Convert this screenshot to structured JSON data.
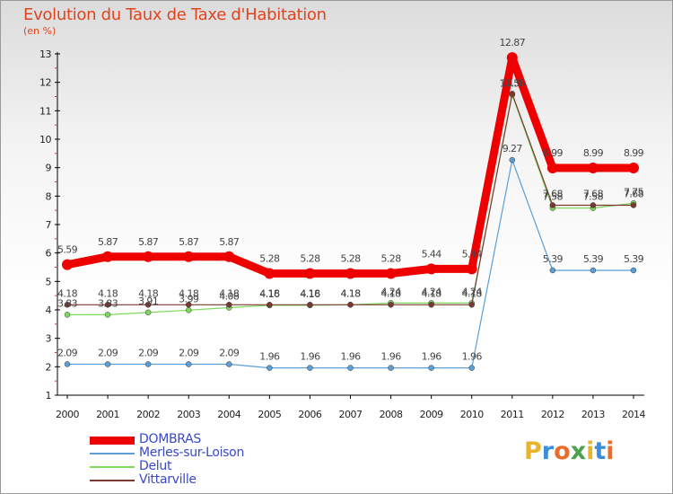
{
  "title": "Evolution du Taux de Taxe d'Habitation",
  "unit": "(en %)",
  "logo": {
    "text": "Proxiti",
    "colors": [
      "#e8b52a",
      "#3c8ed6",
      "#ea6b2c",
      "#4ca14c",
      "#e8b52a",
      "#3c8ed6",
      "#ea6b2c"
    ]
  },
  "chart_data": {
    "type": "line",
    "title": "Evolution du Taux de Taxe d'Habitation",
    "ylabel": "(en %)",
    "xlabel": "",
    "x": [
      "2000",
      "2001",
      "2002",
      "2003",
      "2004",
      "2005",
      "2006",
      "2007",
      "2008",
      "2009",
      "2010",
      "2011",
      "2012",
      "2013",
      "2014"
    ],
    "ylim": [
      1,
      13
    ],
    "yticks": [
      1,
      2,
      3,
      4,
      5,
      6,
      7,
      8,
      9,
      10,
      11,
      12,
      13
    ],
    "grid": false,
    "legend_position": "bottom-left",
    "series": [
      {
        "name": "DOMBRAS",
        "color": "#ee0000",
        "values": [
          5.59,
          5.87,
          5.87,
          5.87,
          5.87,
          5.28,
          5.28,
          5.28,
          5.28,
          5.44,
          5.44,
          12.87,
          8.99,
          8.99,
          8.99
        ],
        "labels": [
          "5.59",
          "5.87",
          "5.87",
          "5.87",
          "5.87",
          "5.28",
          "5.28",
          "5.28",
          "5.28",
          "5.44",
          "5.44",
          "12.87",
          "8.99",
          "8.99",
          "8.99"
        ]
      },
      {
        "name": "Merles-sur-Loison",
        "color": "#5b9fd6",
        "values": [
          2.09,
          2.09,
          2.09,
          2.09,
          2.09,
          1.96,
          1.96,
          1.96,
          1.96,
          1.96,
          1.96,
          9.27,
          5.39,
          5.39,
          5.39
        ],
        "labels": [
          "2.09",
          "2.09",
          "2.09",
          "2.09",
          "2.09",
          "1.96",
          "1.96",
          "1.96",
          "1.96",
          "1.96",
          "1.96",
          "9.27",
          "5.39",
          "5.39",
          "5.39"
        ]
      },
      {
        "name": "Delut",
        "color": "#7ed85c",
        "values": [
          3.83,
          3.83,
          3.91,
          3.99,
          4.08,
          4.16,
          4.16,
          4.18,
          4.24,
          4.24,
          4.24,
          11.56,
          7.58,
          7.58,
          7.75
        ],
        "labels": [
          "3.83",
          "3.83",
          "3.91",
          "3.99",
          "4.08",
          "4.16",
          "4.16",
          "4.18",
          "4.24",
          "4.24",
          "4.24",
          "11.56",
          "7.58",
          "7.58",
          "7.75"
        ]
      },
      {
        "name": "Vittarville",
        "color": "#7a3a32",
        "values": [
          4.18,
          4.18,
          4.18,
          4.18,
          4.18,
          4.18,
          4.18,
          4.18,
          4.18,
          4.18,
          4.18,
          11.6,
          7.68,
          7.68,
          7.68
        ],
        "labels": [
          "4.18",
          "4.18",
          "4.18",
          "4.18",
          "4.18",
          "4.18",
          "4.18",
          "4.18",
          "4.18",
          "4.18",
          "4.18",
          "11.6",
          "7.68",
          "7.68",
          "7.68"
        ]
      }
    ]
  }
}
